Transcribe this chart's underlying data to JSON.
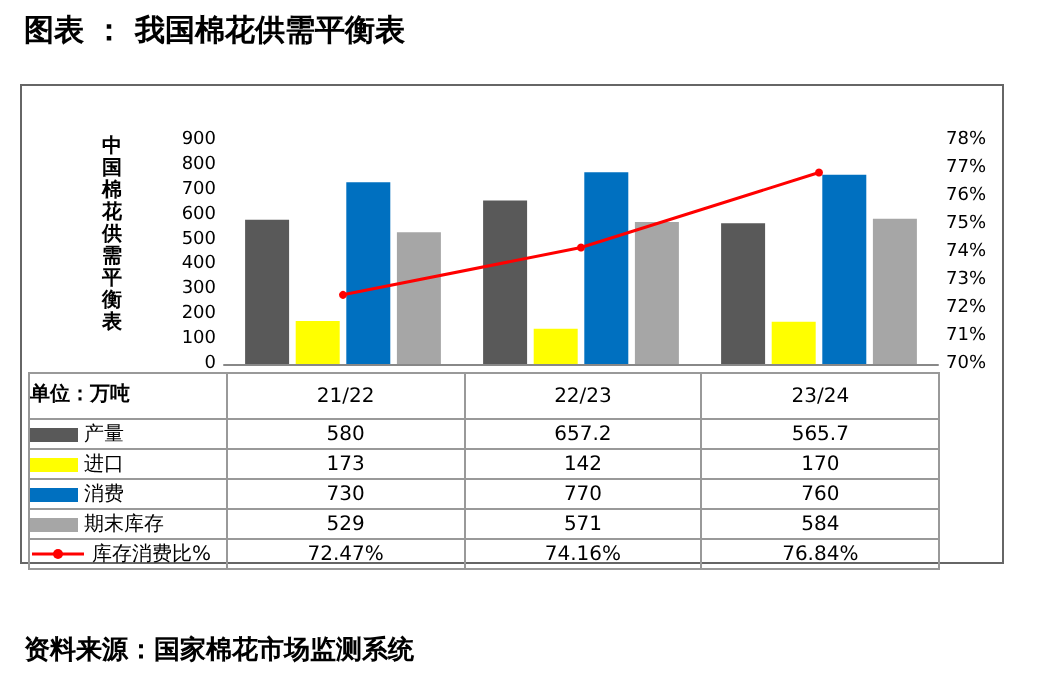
{
  "chart_data": {
    "type": "bar",
    "title": "图表 ： 我国棉花供需平衡表",
    "ylabel": "中国棉花供需平衡表",
    "categories": [
      "21/22",
      "22/23",
      "23/24"
    ],
    "series": [
      {
        "name": "产量",
        "color": "#595959",
        "values": [
          580,
          657.2,
          565.7
        ]
      },
      {
        "name": "进口",
        "color": "#ffff00",
        "values": [
          173,
          142,
          170
        ]
      },
      {
        "name": "消费",
        "color": "#0070c0",
        "values": [
          730,
          770,
          760
        ]
      },
      {
        "name": "期末库存",
        "color": "#a6a6a6",
        "values": [
          529,
          571,
          584
        ]
      },
      {
        "name": "库存消费比%",
        "type": "line",
        "axis": "y2",
        "color": "#ff0000",
        "values": [
          72.47,
          74.16,
          76.84
        ],
        "value_labels": [
          "72.47%",
          "74.16%",
          "76.84%"
        ]
      }
    ],
    "ylim": [
      0,
      900
    ],
    "yticks": [
      0,
      100,
      200,
      300,
      400,
      500,
      600,
      700,
      800,
      900
    ],
    "y2lim": [
      70,
      78
    ],
    "y2ticks": [
      {
        "value": 70,
        "label": "70%"
      },
      {
        "value": 71,
        "label": "71%"
      },
      {
        "value": 72,
        "label": "72%"
      },
      {
        "value": 73,
        "label": "73%"
      },
      {
        "value": 74,
        "label": "74%"
      },
      {
        "value": 75,
        "label": "75%"
      },
      {
        "value": 76,
        "label": "76%"
      },
      {
        "value": 77,
        "label": "77%"
      },
      {
        "value": 78,
        "label": "78%"
      }
    ],
    "data_labels": true,
    "legend": "bottom",
    "grid": false,
    "marker": "circle",
    "line_style": "solid",
    "annotations": [
      "单位：万吨",
      "资料来源：国家棉花市场监测系统"
    ]
  }
}
